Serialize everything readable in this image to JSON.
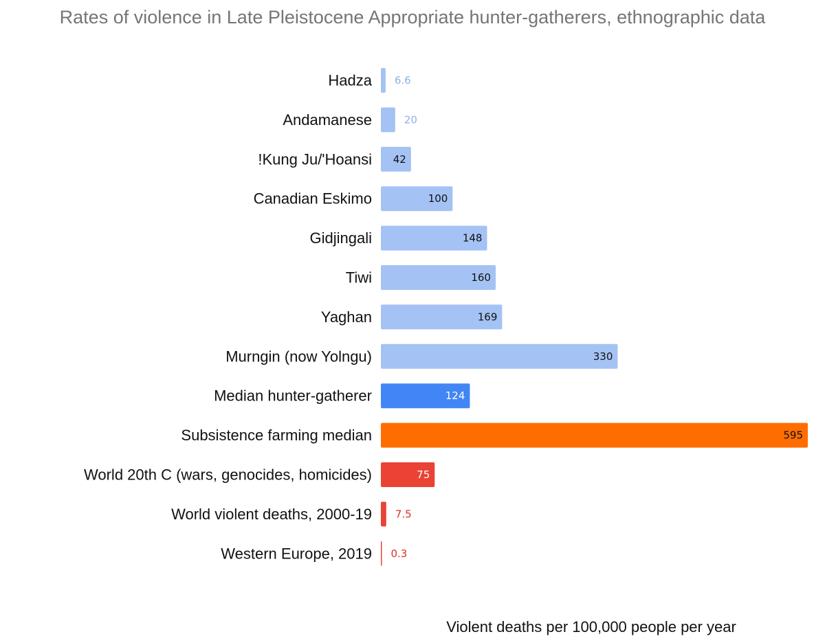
{
  "chart_data": {
    "type": "bar",
    "orientation": "horizontal",
    "title": "Rates of violence in Late Pleistocene Appropriate hunter-gatherers, ethnographic data",
    "xlabel": "Violent deaths per 100,000 people per year",
    "ylabel": "",
    "xlim": [
      0,
      595
    ],
    "grid": false,
    "categories": [
      "Hadza",
      "Andamanese",
      "!Kung Ju/'Hoansi",
      "Canadian Eskimo",
      "Gidjingali",
      "Tiwi",
      "Yaghan",
      "Murngin (now Yolngu)",
      "Median hunter-gatherer",
      "Subsistence farming median",
      "World 20th C (wars, genocides, homicides)",
      "World violent deaths, 2000-19",
      "Western Europe, 2019"
    ],
    "values": [
      6.6,
      20,
      42,
      100,
      148,
      160,
      169,
      330,
      124,
      595,
      75,
      7.5,
      0.3
    ],
    "value_labels": [
      "6.6",
      "20",
      "42",
      "100",
      "148",
      "160",
      "169",
      "330",
      "124",
      "595",
      "75",
      "7.5",
      "0.3"
    ],
    "bar_colors": [
      "#a4c2f4",
      "#a4c2f4",
      "#a4c2f4",
      "#a4c2f4",
      "#a4c2f4",
      "#a4c2f4",
      "#a4c2f4",
      "#a4c2f4",
      "#4285f4",
      "#ff6d01",
      "#ea4335",
      "#ea4335",
      "#ea4335"
    ],
    "label_colors": [
      "#8fb0e8",
      "#8fb0e8",
      "#111111",
      "#111111",
      "#111111",
      "#111111",
      "#111111",
      "#111111",
      "#ffffff",
      "#111111",
      "#ffffff",
      "#d93025",
      "#d93025"
    ]
  }
}
